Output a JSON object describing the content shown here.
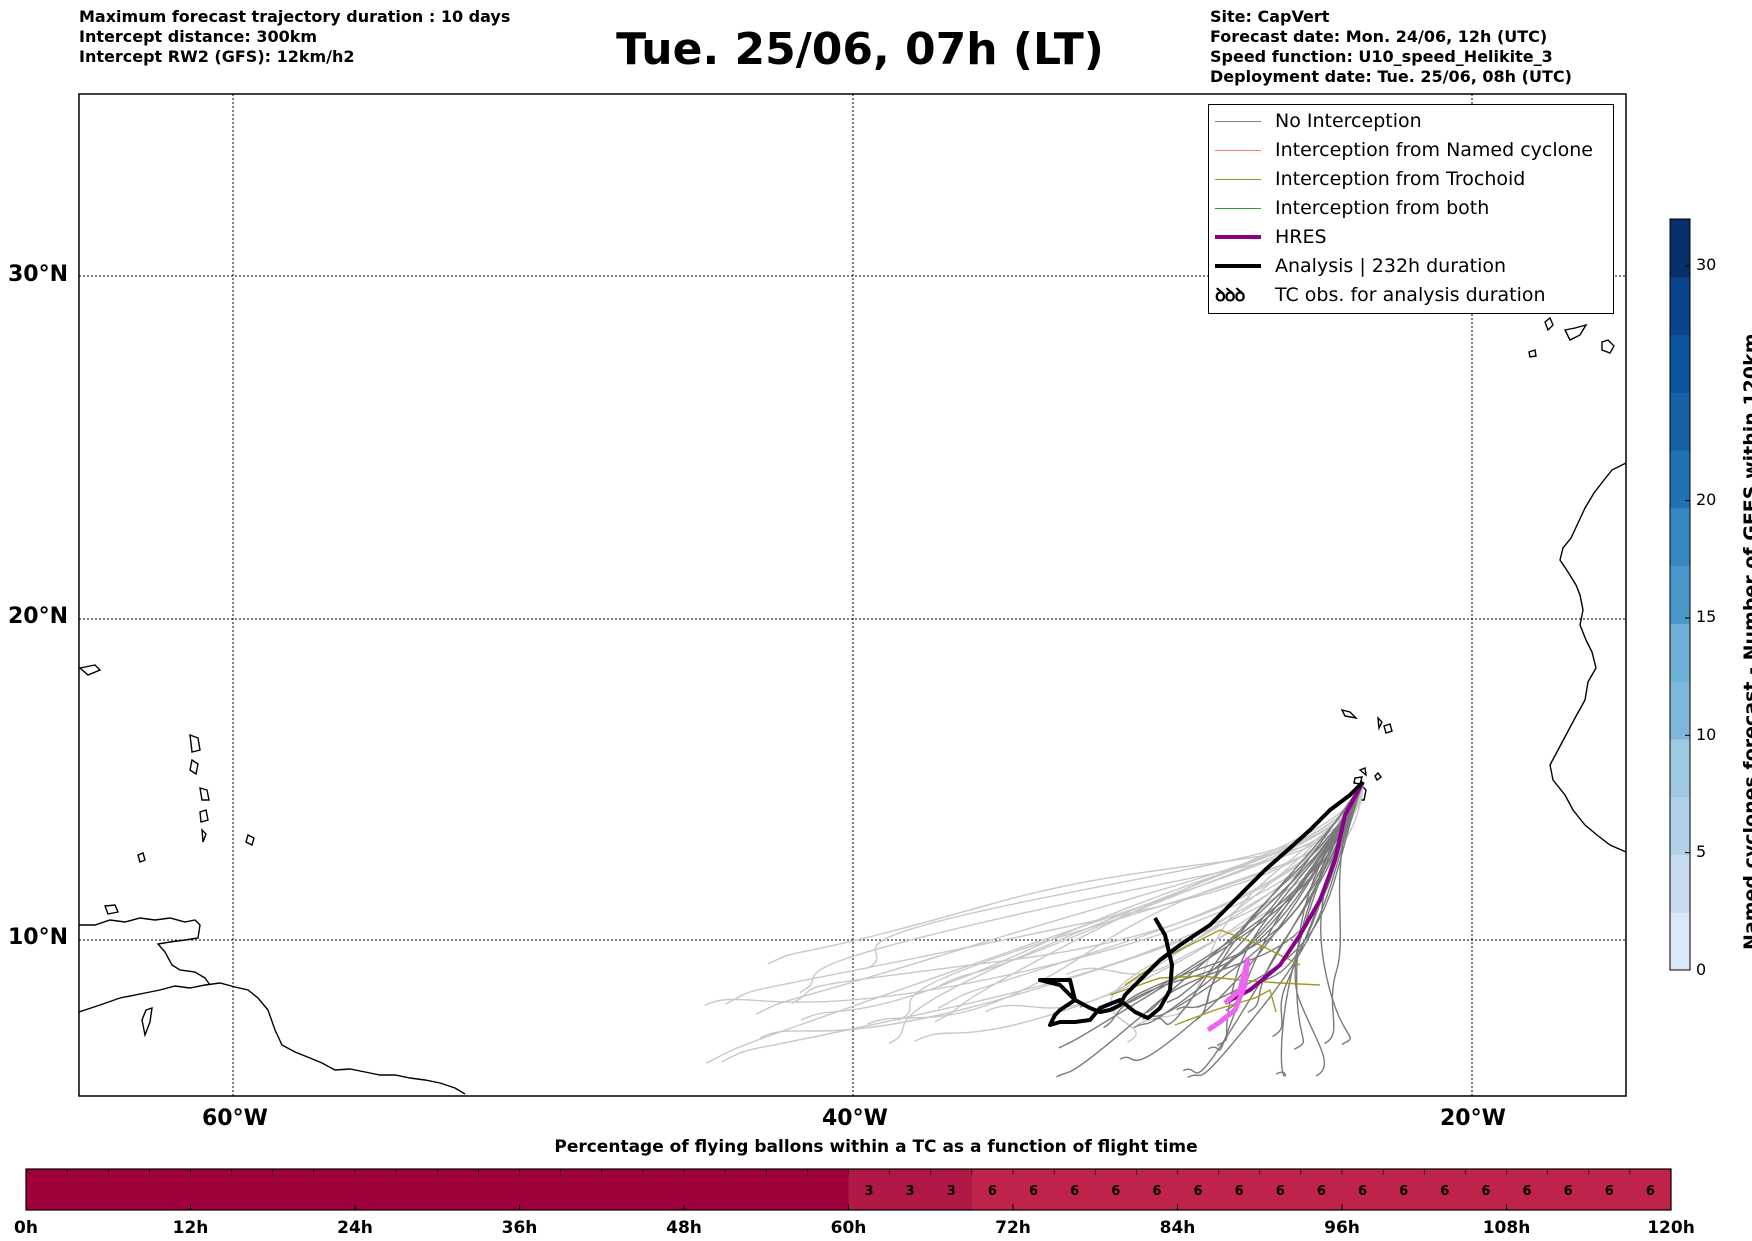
{
  "header": {
    "left_lines": [
      "Maximum forecast trajectory duration : 10 days",
      "Intercept distance: 300km",
      "Intercept RW2 (GFS):  12km/h2"
    ],
    "title": "Tue. 25/06, 07h (LT)",
    "right_lines": [
      "Site: CapVert",
      "Forecast date: Mon. 24/06, 12h (UTC)",
      "Speed function: U10_speed_Helikite_3",
      "Deployment date: Tue. 25/06, 08h (UTC)"
    ]
  },
  "map": {
    "lat_labels": [
      "30°N",
      "20°N",
      "10°N"
    ],
    "lon_labels": [
      "60°W",
      "40°W",
      "20°W"
    ],
    "colors": {
      "no_interception": "#7a7a7a",
      "ensemble_far": "#c8c8c8",
      "named_cyclone": "#ff7f50",
      "trochoid": "#a09a1e",
      "both": "#2ca02c",
      "hres": "#8b008b",
      "analysis": "#000000",
      "hres_early": "#ee66ee"
    }
  },
  "legend": {
    "items": [
      {
        "label": "No Interception",
        "color": "#7f7f7f",
        "width": 1.5
      },
      {
        "label": "Interception from Named cyclone",
        "color": "#ff7f50",
        "width": 1.5
      },
      {
        "label": "Interception from Trochoid",
        "color": "#9a9420",
        "width": 1.5
      },
      {
        "label": "Interception from both",
        "color": "#2ca02c",
        "width": 1.5
      },
      {
        "label": "HRES",
        "color": "#8b008b",
        "width": 4
      },
      {
        "label": "Analysis | 232h duration",
        "color": "#000000",
        "width": 4
      },
      {
        "label": "TC obs. for analysis duration",
        "icon": "ꝺꝺꝺ"
      }
    ]
  },
  "colorbar": {
    "title": "Named cyclones forecast - Number of GEFS within 120km",
    "ticks": [
      "0",
      "5",
      "10",
      "15",
      "20",
      "30"
    ],
    "tick_values": [
      0,
      5,
      10,
      15,
      20,
      30
    ],
    "max": 32,
    "colors": [
      "#dbe9f6",
      "#c6dbef",
      "#b2d0e9",
      "#9ecae1",
      "#7fb6dc",
      "#6baed6",
      "#4a98c9",
      "#3788c0",
      "#2171b5",
      "#1861a8",
      "#0b559f",
      "#08468b",
      "#08306b"
    ]
  },
  "timebar": {
    "title": "Percentage of flying ballons within a TC as a function of flight time",
    "tick_labels": [
      "0h",
      "12h",
      "24h",
      "36h",
      "48h",
      "60h",
      "72h",
      "84h",
      "96h",
      "108h",
      "120h"
    ],
    "cells": [
      "",
      "",
      "",
      "",
      "",
      "",
      "",
      "",
      "",
      "",
      "",
      "",
      "",
      "",
      "",
      "",
      "",
      "",
      "",
      "",
      "3",
      "3",
      "3",
      "6",
      "6",
      "6",
      "6",
      "6",
      "6",
      "6",
      "6",
      "6",
      "6",
      "6",
      "6",
      "6",
      "6",
      "6",
      "6",
      "6"
    ],
    "color_zero": "#a0003c",
    "color_low": "#b01845",
    "color_mid": "#c0234a"
  }
}
